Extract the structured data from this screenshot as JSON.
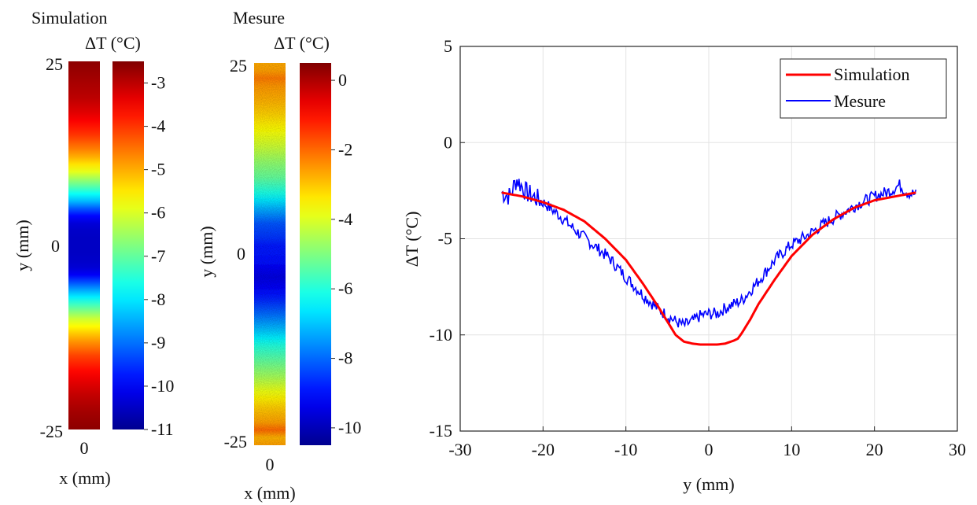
{
  "colors": {
    "simulation_line": "#ff0000",
    "mesure_line": "#0000ff",
    "grid": "#e3e3e3",
    "axis": "#262626",
    "colormap": [
      "#00008f",
      "#0000ff",
      "#0080ff",
      "#00ffff",
      "#80ff80",
      "#ffff00",
      "#ff8000",
      "#ff0000",
      "#800000"
    ]
  },
  "chart_data": [
    {
      "type": "heatmap",
      "title": "Simulation",
      "xlabel": "x (mm)",
      "ylabel": "y (mm)",
      "x_ticks": [
        "0"
      ],
      "y_ticks": [
        "25",
        "0",
        "-25"
      ],
      "ylim": [
        -25,
        25
      ],
      "colorbar": {
        "label": "ΔT (°C)",
        "range": [
          -11,
          -2.5
        ],
        "ticks": [
          "-3",
          "-4",
          "-5",
          "-6",
          "-7",
          "-8",
          "-9",
          "-10",
          "-11"
        ],
        "tick_values": [
          -3,
          -4,
          -5,
          -6,
          -7,
          -8,
          -9,
          -10,
          -11
        ]
      },
      "profile": "simulation"
    },
    {
      "type": "heatmap",
      "title": "Mesure",
      "xlabel": "x (mm)",
      "ylabel": "y (mm)",
      "x_ticks": [
        "0"
      ],
      "y_ticks": [
        "25",
        "0",
        "-25"
      ],
      "ylim": [
        -25,
        25
      ],
      "colorbar": {
        "label": "ΔT (°C)",
        "range": [
          -10.5,
          0.5
        ],
        "ticks": [
          "0",
          "-2",
          "-4",
          "-6",
          "-8",
          "-10"
        ],
        "tick_values": [
          0,
          -2,
          -4,
          -6,
          -8,
          -10
        ]
      },
      "profile": "mesure"
    },
    {
      "type": "line",
      "xlabel": "y (mm)",
      "ylabel": "ΔT (°C)",
      "xlim": [
        -30,
        30
      ],
      "ylim": [
        -15,
        5
      ],
      "x_ticks": [
        -30,
        -20,
        -10,
        0,
        10,
        20,
        30
      ],
      "y_ticks": [
        5,
        0,
        -5,
        -10,
        -15
      ],
      "grid": true,
      "legend": "top-right",
      "series": [
        {
          "name": "Simulation",
          "color": "#ff0000",
          "x": [
            -25,
            -22.5,
            -20,
            -17.5,
            -15,
            -12.5,
            -10,
            -8,
            -6,
            -5,
            -4,
            -3,
            -2,
            -1,
            0,
            1,
            2,
            3,
            3.5,
            4,
            5,
            6,
            8,
            10,
            12.5,
            15,
            17.5,
            20,
            22.5,
            25
          ],
          "values": [
            -2.6,
            -2.8,
            -3.1,
            -3.5,
            -4.1,
            -5.0,
            -6.1,
            -7.3,
            -8.6,
            -9.3,
            -10.0,
            -10.35,
            -10.45,
            -10.5,
            -10.5,
            -10.5,
            -10.45,
            -10.3,
            -10.2,
            -9.9,
            -9.2,
            -8.4,
            -7.1,
            -5.9,
            -4.8,
            -4.0,
            -3.4,
            -3.0,
            -2.8,
            -2.6
          ]
        },
        {
          "name": "Mesure",
          "color": "#0000ff",
          "x": [
            -25,
            -24,
            -23.2,
            -22,
            -20,
            -18,
            -16,
            -14,
            -12,
            -10,
            -8,
            -6,
            -4,
            -3,
            -2,
            -1,
            0,
            1,
            2,
            4,
            6,
            8,
            10,
            12,
            14,
            16,
            18,
            20,
            22,
            23,
            24,
            25
          ],
          "values": [
            -2.6,
            -2.8,
            -1.9,
            -2.6,
            -3.1,
            -3.8,
            -4.6,
            -5.3,
            -6.0,
            -7.0,
            -7.9,
            -8.7,
            -9.3,
            -9.5,
            -9.3,
            -9.0,
            -8.9,
            -8.9,
            -8.6,
            -8.2,
            -7.2,
            -6.1,
            -5.3,
            -4.8,
            -4.2,
            -3.7,
            -3.2,
            -2.8,
            -2.5,
            -2.2,
            -2.6,
            -2.7
          ]
        }
      ]
    }
  ]
}
